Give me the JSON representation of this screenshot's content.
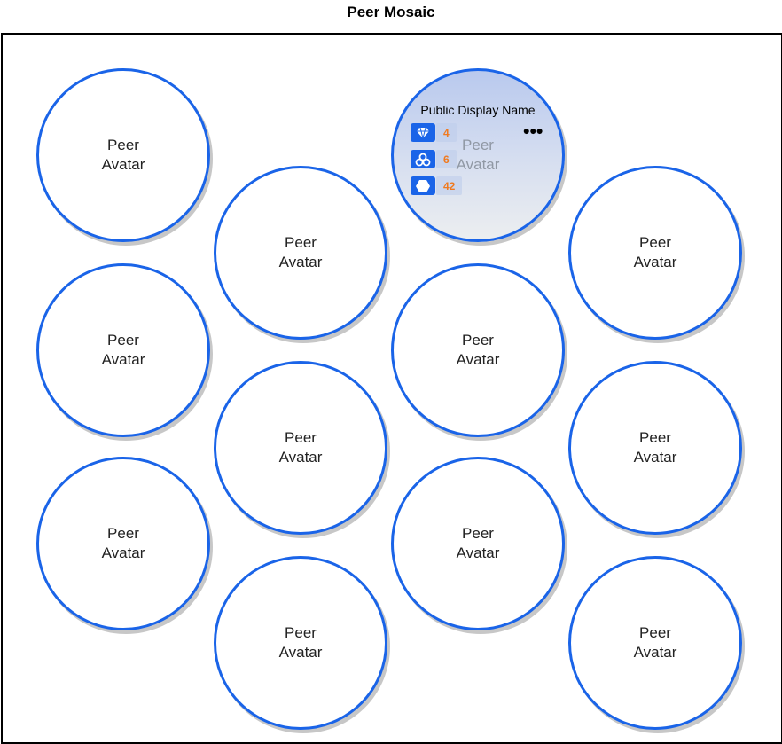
{
  "page": {
    "title": "Peer Mosaic"
  },
  "avatar_label": "Peer Avatar",
  "active_peer": {
    "display_name": "Public Display Name",
    "more_icon": "more-icon",
    "stats": [
      {
        "icon": "diamond-icon",
        "value": "4"
      },
      {
        "icon": "cluster-icon",
        "value": "6"
      },
      {
        "icon": "hexagon-icon",
        "value": "42"
      }
    ]
  },
  "colors": {
    "accent": "#1a64e8",
    "stat_value": "#f07a1f",
    "frame": "#000000"
  },
  "peers": [
    {
      "label": "Peer Avatar"
    },
    {
      "label": "Peer Avatar"
    },
    {
      "label": "Peer Avatar"
    },
    {
      "label": "Peer Avatar"
    },
    {
      "label": "Peer Avatar"
    },
    {
      "label": "Peer Avatar"
    },
    {
      "label": "Peer Avatar"
    },
    {
      "label": "Peer Avatar"
    },
    {
      "label": "Peer Avatar"
    },
    {
      "label": "Peer Avatar"
    },
    {
      "label": "Peer Avatar"
    },
    {
      "label": "Peer Avatar"
    },
    {
      "label": "Peer Avatar"
    }
  ]
}
